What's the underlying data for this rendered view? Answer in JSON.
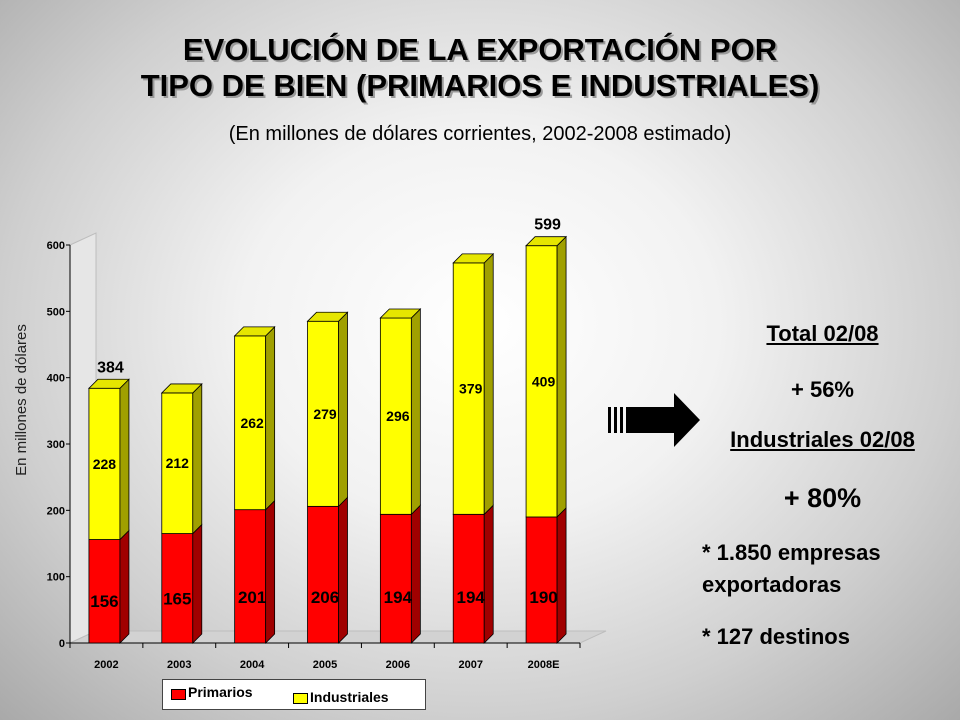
{
  "title_line1": "EVOLUCIÓN DE LA EXPORTACIÓN POR",
  "title_line2": "TIPO DE BIEN (PRIMARIOS E INDUSTRIALES)",
  "subtitle": "(En millones de dólares corrientes, 2002-2008 estimado)",
  "summary": {
    "total_label": "Total 02/08",
    "total_pct": "+ 56%",
    "ind_label": "Industriales 02/08",
    "ind_pct": "+ 80%",
    "empresas_line1": "* 1.850 empresas",
    "empresas_line2": "exportadoras",
    "destinos": "* 127 destinos"
  },
  "colors": {
    "primarios": "#ff0000",
    "industriales": "#ffff00"
  },
  "chart_data": {
    "type": "bar",
    "stacked": true,
    "categories": [
      "2002",
      "2003",
      "2004",
      "2005",
      "2006",
      "2007",
      "2008E"
    ],
    "series": [
      {
        "name": "Primarios",
        "values": [
          156,
          165,
          201,
          206,
          194,
          194,
          190
        ]
      },
      {
        "name": "Industriales",
        "values": [
          228,
          212,
          262,
          279,
          296,
          379,
          409
        ]
      }
    ],
    "totals_labeled": [
      {
        "category": "2002",
        "value": "384"
      },
      {
        "category": "2008E",
        "value": "599"
      }
    ],
    "ylabel": "En millones de dólares",
    "xlabel": "",
    "ylim": [
      0,
      600
    ],
    "yticks": [
      0,
      100,
      200,
      300,
      400,
      500,
      600
    ],
    "legend_position": "bottom"
  }
}
